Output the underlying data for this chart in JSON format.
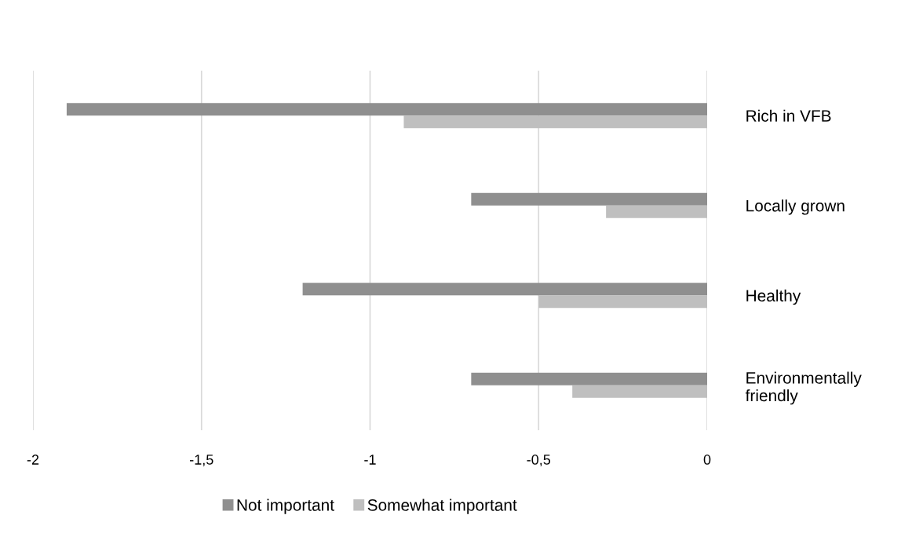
{
  "chart_data": {
    "type": "bar",
    "orientation": "horizontal",
    "categories": [
      "Rich in VFB",
      "Locally grown",
      "Healthy",
      "Environmentally\nfriendly"
    ],
    "series": [
      {
        "name": "Not important",
        "color": "#8f8f8f",
        "values": [
          -1.9,
          -0.7,
          -1.2,
          -0.7
        ]
      },
      {
        "name": "Somewhat important",
        "color": "#bfbfbf",
        "values": [
          -0.9,
          -0.3,
          -0.5,
          -0.4
        ]
      }
    ],
    "xlim": [
      -2,
      0
    ],
    "xticks": [
      -2,
      {
        "value": -1.5,
        "label": "-1,5"
      },
      -1,
      {
        "value": -0.5,
        "label": "-0,5"
      },
      0
    ],
    "grid": "x",
    "legend": "bottom"
  }
}
